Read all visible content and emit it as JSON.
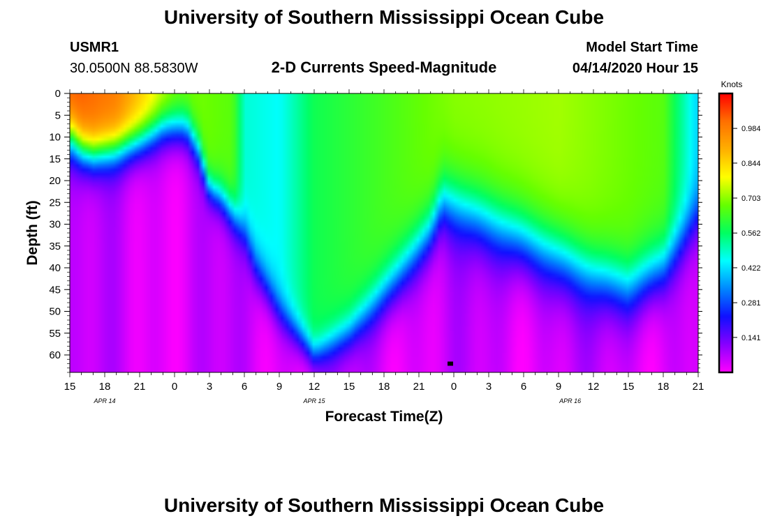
{
  "header": {
    "title": "University of Southern Mississippi Ocean Cube",
    "station_id": "USMR1",
    "station_coords": "30.0500N 88.5830W",
    "subtitle": "2-D Currents Speed-Magnitude",
    "model_label": "Model Start Time",
    "model_time": "04/14/2020 Hour 15"
  },
  "footer": {
    "title": "University of Southern Mississippi Ocean Cube"
  },
  "chart_data": {
    "type": "heatmap",
    "title": "2-D Currents Speed-Magnitude",
    "xlabel": "Forecast Time(Z)",
    "ylabel": "Depth (ft)",
    "x_tick_labels": [
      "15",
      "18",
      "21",
      "0",
      "3",
      "6",
      "9",
      "12",
      "15",
      "18",
      "21",
      "0",
      "3",
      "6",
      "9",
      "12",
      "15",
      "18",
      "21"
    ],
    "x_hours_from_start": [
      0,
      3,
      6,
      9,
      12,
      15,
      18,
      21,
      24,
      27,
      30,
      33,
      36,
      39,
      42,
      45,
      48,
      51,
      54
    ],
    "x_range_hours": [
      0,
      54
    ],
    "date_labels": [
      {
        "text": "APR 14",
        "hour": 3
      },
      {
        "text": "APR 15",
        "hour": 21
      },
      {
        "text": "APR 16",
        "hour": 43
      }
    ],
    "y_ticks": [
      0,
      5,
      10,
      15,
      20,
      25,
      30,
      35,
      40,
      45,
      50,
      55,
      60
    ],
    "y_range_ft": [
      0,
      64
    ],
    "colorbar": {
      "label": "Knots",
      "ticks": [
        "0.984",
        "0.844",
        "0.703",
        "0.562",
        "0.422",
        "0.281",
        "0.141"
      ],
      "tick_values": [
        0.984,
        0.844,
        0.703,
        0.562,
        0.422,
        0.281,
        0.141
      ],
      "range": [
        0.0,
        1.125
      ],
      "colors": [
        "#ff00ff",
        "#8800ff",
        "#1010ff",
        "#0088ff",
        "#00ffff",
        "#00ff60",
        "#66ff00",
        "#ffff00",
        "#ffb000",
        "#ff7000",
        "#ff0000"
      ]
    },
    "surface_speed_knots": [
      {
        "hour": 0,
        "v": 1.05
      },
      {
        "hour": 4,
        "v": 0.99
      },
      {
        "hour": 7,
        "v": 0.82
      },
      {
        "hour": 9,
        "v": 0.7
      },
      {
        "hour": 14,
        "v": 0.66
      },
      {
        "hour": 15,
        "v": 0.48
      },
      {
        "hour": 18,
        "v": 0.45
      },
      {
        "hour": 21,
        "v": 0.58
      },
      {
        "hour": 33,
        "v": 0.7
      },
      {
        "hour": 42,
        "v": 0.72
      },
      {
        "hour": 51,
        "v": 0.66
      },
      {
        "hour": 54,
        "v": 0.4
      }
    ],
    "speed_profile_ft": [
      {
        "hour": 0,
        "d0": 10,
        "s": 10
      },
      {
        "hour": 1,
        "d0": 13,
        "s": 9
      },
      {
        "hour": 2,
        "d0": 14,
        "s": 9
      },
      {
        "hour": 4,
        "d0": 13,
        "s": 9
      },
      {
        "hour": 6,
        "d0": 11,
        "s": 9
      },
      {
        "hour": 8,
        "d0": 8,
        "s": 9
      },
      {
        "hour": 10,
        "d0": 8,
        "s": 9
      },
      {
        "hour": 11,
        "d0": 13,
        "s": 8
      },
      {
        "hour": 12,
        "d0": 22,
        "s": 7
      },
      {
        "hour": 13,
        "d0": 24,
        "s": 8
      },
      {
        "hour": 15,
        "d0": 32,
        "s": 9
      },
      {
        "hour": 16,
        "d0": 40,
        "s": 10
      },
      {
        "hour": 18,
        "d0": 50,
        "s": 9
      },
      {
        "hour": 21,
        "d0": 60,
        "s": 7
      },
      {
        "hour": 24,
        "d0": 55,
        "s": 9
      },
      {
        "hour": 28,
        "d0": 43,
        "s": 12
      },
      {
        "hour": 31,
        "d0": 32,
        "s": 12
      },
      {
        "hour": 32,
        "d0": 25,
        "s": 13
      },
      {
        "hour": 33,
        "d0": 26,
        "s": 14
      },
      {
        "hour": 36,
        "d0": 30,
        "s": 15
      },
      {
        "hour": 39,
        "d0": 34,
        "s": 15
      },
      {
        "hour": 42,
        "d0": 38,
        "s": 15
      },
      {
        "hour": 45,
        "d0": 42,
        "s": 14
      },
      {
        "hour": 48,
        "d0": 45,
        "s": 14
      },
      {
        "hour": 51,
        "d0": 40,
        "s": 13
      },
      {
        "hour": 53,
        "d0": 32,
        "s": 12
      },
      {
        "hour": 54,
        "d0": 28,
        "s": 12
      }
    ],
    "marker": {
      "hour": 32.7,
      "depth_ft": 62
    }
  }
}
